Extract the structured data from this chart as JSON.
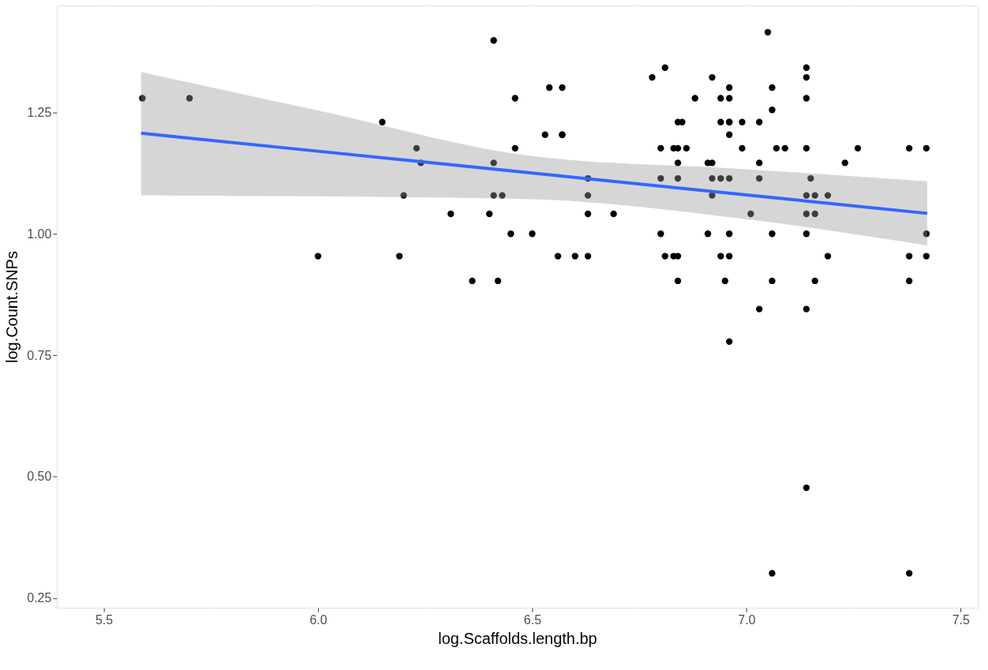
{
  "chart_data": {
    "type": "scatter",
    "xlabel": "log.Scaffolds.length.bp",
    "ylabel": "log.Count.SNPs",
    "xlim": [
      5.39,
      7.54
    ],
    "ylim": [
      0.23,
      1.47
    ],
    "xticks": [
      5.5,
      {
        "value": 6,
        "label": "6.0"
      },
      6.5,
      {
        "value": 7,
        "label": "7.0"
      },
      7.5
    ],
    "yticks": [
      0.25,
      {
        "value": 0.5,
        "label": "0.50"
      },
      0.75,
      {
        "value": 1,
        "label": "1.00"
      },
      1.25
    ],
    "grid": true,
    "series": [
      {
        "type": "scatter",
        "marker": "circle",
        "color": "#000000",
        "x": [
          5.59,
          5.7,
          6.0,
          6.15,
          6.19,
          6.2,
          6.23,
          6.24,
          6.31,
          6.36,
          6.4,
          6.41,
          6.41,
          6.41,
          6.42,
          6.43,
          6.45,
          6.46,
          6.46,
          6.5,
          6.53,
          6.54,
          6.56,
          6.57,
          6.57,
          6.57,
          6.6,
          6.63,
          6.63,
          6.63,
          6.63,
          6.69,
          7.05,
          6.81,
          6.78,
          6.92,
          6.96,
          7.06,
          7.14,
          7.14,
          6.88,
          6.94,
          6.96,
          7.14,
          7.06,
          6.84,
          6.85,
          6.94,
          6.96,
          6.96,
          6.99,
          7.03,
          6.96,
          6.8,
          6.83,
          6.84,
          6.86,
          6.99,
          7.07,
          7.09,
          7.14,
          7.26,
          7.38,
          7.42,
          6.84,
          6.91,
          6.92,
          7.03,
          7.23,
          6.8,
          6.84,
          6.92,
          6.94,
          6.96,
          7.03,
          7.15,
          6.92,
          7.14,
          7.16,
          7.19,
          7.01,
          7.14,
          7.16,
          6.8,
          6.91,
          6.96,
          7.06,
          7.14,
          7.42,
          6.81,
          6.83,
          6.84,
          6.94,
          6.96,
          7.19,
          7.38,
          7.42,
          6.84,
          6.95,
          7.06,
          7.16,
          7.38,
          7.03,
          7.14,
          6.96,
          7.14,
          7.06,
          7.38
        ],
        "values": [
          1.279,
          1.279,
          0.954,
          1.23,
          0.954,
          1.079,
          1.176,
          1.146,
          1.041,
          0.903,
          1.041,
          1.398,
          1.079,
          1.146,
          0.903,
          1.079,
          1.0,
          1.279,
          1.176,
          1.0,
          1.204,
          1.301,
          0.954,
          1.301,
          1.204,
          1.204,
          0.954,
          1.079,
          1.114,
          1.041,
          0.954,
          1.041,
          1.415,
          1.342,
          1.322,
          1.322,
          1.301,
          1.301,
          1.342,
          1.322,
          1.279,
          1.279,
          1.279,
          1.279,
          1.255,
          1.23,
          1.23,
          1.23,
          1.23,
          1.23,
          1.23,
          1.23,
          1.204,
          1.176,
          1.176,
          1.176,
          1.176,
          1.176,
          1.176,
          1.176,
          1.176,
          1.176,
          1.176,
          1.176,
          1.146,
          1.146,
          1.146,
          1.146,
          1.146,
          1.114,
          1.114,
          1.114,
          1.114,
          1.114,
          1.114,
          1.114,
          1.079,
          1.079,
          1.079,
          1.079,
          1.041,
          1.041,
          1.041,
          1.0,
          1.0,
          1.0,
          1.0,
          1.0,
          1.0,
          0.954,
          0.954,
          0.954,
          0.954,
          0.954,
          0.954,
          0.954,
          0.954,
          0.903,
          0.903,
          0.903,
          0.903,
          0.903,
          0.845,
          0.845,
          0.778,
          0.477,
          0.301,
          0.301
        ]
      },
      {
        "type": "line",
        "color": "#3366ff",
        "x": [
          5.587,
          6.0,
          6.5,
          7.0,
          7.422
        ],
        "values": [
          1.207,
          1.17,
          1.125,
          1.08,
          1.042
        ],
        "lower": [
          1.079,
          1.077,
          1.071,
          1.03,
          0.976
        ],
        "upper": [
          1.333,
          1.254,
          1.16,
          1.133,
          1.108
        ]
      }
    ]
  }
}
